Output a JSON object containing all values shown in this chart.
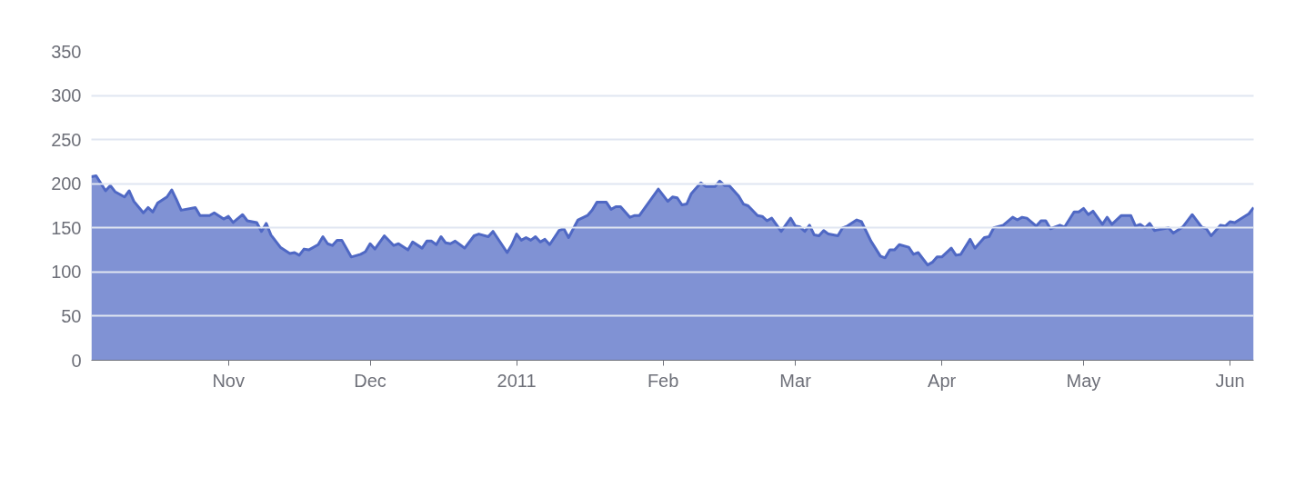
{
  "chart_data": {
    "type": "area",
    "x": [
      "2010-10-03",
      "2010-10-04",
      "2010-10-06",
      "2010-10-07",
      "2010-10-08",
      "2010-10-10",
      "2010-10-11",
      "2010-10-12",
      "2010-10-14",
      "2010-10-15",
      "2010-10-16",
      "2010-10-17",
      "2010-10-19",
      "2010-10-20",
      "2010-10-21",
      "2010-10-22",
      "2010-10-25",
      "2010-10-26",
      "2010-10-28",
      "2010-10-29",
      "2010-10-31",
      "2010-11-01",
      "2010-11-02",
      "2010-11-04",
      "2010-11-05",
      "2010-11-07",
      "2010-11-08",
      "2010-11-09",
      "2010-11-10",
      "2010-11-12",
      "2010-11-14",
      "2010-11-15",
      "2010-11-16",
      "2010-11-17",
      "2010-11-18",
      "2010-11-20",
      "2010-11-21",
      "2010-11-22",
      "2010-11-23",
      "2010-11-24",
      "2010-11-25",
      "2010-11-27",
      "2010-11-29",
      "2010-11-30",
      "2010-12-01",
      "2010-12-02",
      "2010-12-04",
      "2010-12-06",
      "2010-12-07",
      "2010-12-09",
      "2010-12-10",
      "2010-12-12",
      "2010-12-13",
      "2010-12-14",
      "2010-12-15",
      "2010-12-16",
      "2010-12-17",
      "2010-12-18",
      "2010-12-19",
      "2010-12-21",
      "2010-12-23",
      "2010-12-24",
      "2010-12-26",
      "2010-12-27",
      "2010-12-30",
      "2010-12-31",
      "2011-01-01",
      "2011-01-02",
      "2011-01-03",
      "2011-01-04",
      "2011-01-05",
      "2011-01-06",
      "2011-01-07",
      "2011-01-08",
      "2011-01-10",
      "2011-01-11",
      "2011-01-12",
      "2011-01-14",
      "2011-01-16",
      "2011-01-17",
      "2011-01-18",
      "2011-01-20",
      "2011-01-21",
      "2011-01-22",
      "2011-01-23",
      "2011-01-25",
      "2011-01-26",
      "2011-01-27",
      "2011-01-31",
      "2011-02-02",
      "2011-02-03",
      "2011-02-04",
      "2011-02-05",
      "2011-02-06",
      "2011-02-07",
      "2011-02-09",
      "2011-02-10",
      "2011-02-12",
      "2011-02-13",
      "2011-02-14",
      "2011-02-15",
      "2011-02-17",
      "2011-02-18",
      "2011-02-19",
      "2011-02-21",
      "2011-02-22",
      "2011-02-23",
      "2011-02-24",
      "2011-02-26",
      "2011-02-28",
      "2011-03-01",
      "2011-03-02",
      "2011-03-03",
      "2011-03-04",
      "2011-03-05",
      "2011-03-06",
      "2011-03-07",
      "2011-03-08",
      "2011-03-10",
      "2011-03-11",
      "2011-03-12",
      "2011-03-14",
      "2011-03-15",
      "2011-03-17",
      "2011-03-19",
      "2011-03-20",
      "2011-03-21",
      "2011-03-22",
      "2011-03-23",
      "2011-03-25",
      "2011-03-26",
      "2011-03-27",
      "2011-03-29",
      "2011-03-30",
      "2011-03-31",
      "2011-04-01",
      "2011-04-03",
      "2011-04-04",
      "2011-04-05",
      "2011-04-07",
      "2011-04-08",
      "2011-04-10",
      "2011-04-11",
      "2011-04-12",
      "2011-04-14",
      "2011-04-16",
      "2011-04-17",
      "2011-04-18",
      "2011-04-19",
      "2011-04-21",
      "2011-04-22",
      "2011-04-23",
      "2011-04-24",
      "2011-04-26",
      "2011-04-27",
      "2011-04-29",
      "2011-04-30",
      "2011-05-01",
      "2011-05-02",
      "2011-05-03",
      "2011-05-05",
      "2011-05-06",
      "2011-05-07",
      "2011-05-09",
      "2011-05-11",
      "2011-05-12",
      "2011-05-13",
      "2011-05-14",
      "2011-05-15",
      "2011-05-16",
      "2011-05-19",
      "2011-05-20",
      "2011-05-22",
      "2011-05-24",
      "2011-05-26",
      "2011-05-27",
      "2011-05-28",
      "2011-05-30",
      "2011-05-31",
      "2011-06-01",
      "2011-06-02",
      "2011-06-05",
      "2011-06-06"
    ],
    "series": [
      {
        "color": "#4f68c4",
        "values": [
          208,
          209,
          192,
          198,
          191,
          185,
          192,
          180,
          167,
          173,
          168,
          178,
          185,
          193,
          182,
          170,
          173,
          164,
          164,
          167,
          160,
          163,
          156,
          165,
          158,
          156,
          146,
          155,
          142,
          128,
          121,
          122,
          119,
          126,
          125,
          131,
          140,
          132,
          130,
          136,
          136,
          117,
          120,
          123,
          132,
          126,
          141,
          130,
          132,
          125,
          134,
          127,
          135,
          135,
          131,
          140,
          133,
          132,
          135,
          127,
          141,
          143,
          140,
          146,
          122,
          131,
          143,
          136,
          139,
          136,
          140,
          134,
          137,
          131,
          147,
          149,
          139,
          159,
          164,
          170,
          179,
          179,
          171,
          174,
          174,
          162,
          164,
          164,
          194,
          180,
          185,
          184,
          176,
          177,
          189,
          201,
          197,
          197,
          203,
          198,
          198,
          186,
          177,
          175,
          164,
          163,
          158,
          161,
          146,
          161,
          152,
          151,
          146,
          153,
          142,
          141,
          147,
          143,
          141,
          150,
          152,
          159,
          157,
          135,
          118,
          116,
          125,
          125,
          131,
          128,
          120,
          122,
          108,
          111,
          117,
          117,
          127,
          119,
          120,
          137,
          127,
          139,
          140,
          150,
          153,
          162,
          159,
          162,
          161,
          152,
          158,
          158,
          149,
          153,
          151,
          168,
          168,
          172,
          165,
          169,
          154,
          162,
          154,
          164,
          164,
          152,
          154,
          150,
          155,
          147,
          150,
          144,
          151,
          165,
          151,
          149,
          141,
          153,
          152,
          157,
          156,
          166,
          173
        ]
      }
    ],
    "xlim": [
      "2010-10-03",
      "2011-06-06"
    ],
    "xticks": [
      {
        "value": "2010-11-01",
        "label": "Nov"
      },
      {
        "value": "2010-12-01",
        "label": "Dec"
      },
      {
        "value": "2011-01-01",
        "label": "2011"
      },
      {
        "value": "2011-02-01",
        "label": "Feb"
      },
      {
        "value": "2011-03-01",
        "label": "Mar"
      },
      {
        "value": "2011-04-01",
        "label": "Apr"
      },
      {
        "value": "2011-05-01",
        "label": "May"
      },
      {
        "value": "2011-06-01",
        "label": "Jun"
      }
    ],
    "ylim": [
      0,
      350
    ],
    "yticks": [
      0,
      50,
      100,
      150,
      200,
      250,
      300,
      350
    ],
    "grid": "y"
  }
}
